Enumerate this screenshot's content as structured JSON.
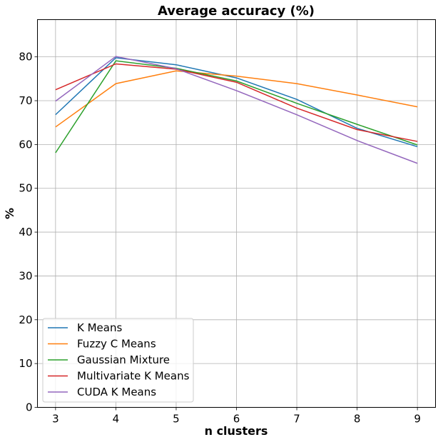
{
  "chart_data": {
    "type": "line",
    "title": "Average accuracy (%)",
    "xlabel": "n clusters",
    "ylabel": "%",
    "x": [
      3,
      4,
      5,
      6,
      7,
      8,
      9
    ],
    "xlim": [
      2.7,
      9.3
    ],
    "ylim": [
      0,
      88.5
    ],
    "xticks": [
      3,
      4,
      5,
      6,
      7,
      8,
      9
    ],
    "yticks": [
      0,
      10,
      20,
      30,
      40,
      50,
      60,
      70,
      80
    ],
    "grid": true,
    "legend_position": "lower-left",
    "series": [
      {
        "name": "K Means",
        "color": "#1f77b4",
        "values": [
          66.8,
          79.8,
          78.2,
          75.2,
          70.3,
          63.7,
          59.5
        ]
      },
      {
        "name": "Fuzzy C Means",
        "color": "#ff7f0e",
        "values": [
          64.0,
          73.9,
          76.8,
          75.6,
          73.9,
          71.3,
          68.6
        ]
      },
      {
        "name": "Gaussian Mixture",
        "color": "#2ca02c",
        "values": [
          58.1,
          79.1,
          77.4,
          74.5,
          69.4,
          64.6,
          59.9
        ]
      },
      {
        "name": "Multivariate K Means",
        "color": "#d62728",
        "values": [
          72.5,
          78.4,
          77.2,
          74.2,
          68.3,
          63.4,
          60.7
        ]
      },
      {
        "name": "CUDA K Means",
        "color": "#9467bd",
        "values": [
          69.9,
          80.1,
          77.3,
          72.3,
          66.8,
          60.9,
          55.7
        ]
      }
    ]
  }
}
